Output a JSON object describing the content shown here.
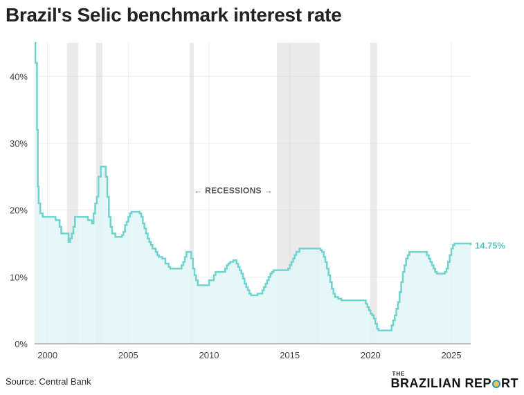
{
  "title": "Brazil's Selic benchmark interest rate",
  "source": "Source: Central Bank",
  "brand": {
    "top": "THE",
    "main_left": "BRAZILIAN REP",
    "main_right": "RT"
  },
  "colors": {
    "line": "#6fd3d0",
    "fill": "#e3f5f4",
    "recession": "#d9d9d9",
    "last_label": "#56c7c4"
  },
  "chart_data": {
    "type": "area",
    "title": "Brazil's Selic benchmark interest rate",
    "xlabel": "",
    "ylabel": "",
    "xlim": [
      1999.2,
      2026.2
    ],
    "ylim": [
      0,
      45
    ],
    "yticks": [
      0,
      10,
      20,
      30,
      40
    ],
    "ytick_labels": [
      "0%",
      "10%",
      "20%",
      "30%",
      "40%"
    ],
    "xticks": [
      2000,
      2005,
      2010,
      2015,
      2020,
      2025
    ],
    "xtick_labels": [
      "2000",
      "2005",
      "2010",
      "2015",
      "2020",
      "2025"
    ],
    "grid": true,
    "annotation": "← RECESSIONS →",
    "last_value_label": "14.75%",
    "recessions": [
      [
        2001.2,
        2001.9
      ],
      [
        2003.0,
        2003.4
      ],
      [
        2008.8,
        2009.05
      ],
      [
        2014.2,
        2016.85
      ],
      [
        2020.0,
        2020.4
      ]
    ],
    "series": [
      {
        "name": "Selic",
        "step": true,
        "x": [
          1999.2,
          1999.25,
          1999.35,
          1999.4,
          1999.45,
          1999.55,
          1999.7,
          2000.0,
          2000.5,
          2000.75,
          2000.85,
          2001.0,
          2001.3,
          2001.4,
          2001.5,
          2001.6,
          2001.7,
          2002.2,
          2002.5,
          2002.75,
          2002.85,
          2002.95,
          2003.05,
          2003.15,
          2003.3,
          2003.5,
          2003.6,
          2003.7,
          2003.8,
          2003.9,
          2004.0,
          2004.2,
          2004.5,
          2004.6,
          2004.7,
          2004.8,
          2004.9,
          2005.0,
          2005.1,
          2005.2,
          2005.3,
          2005.7,
          2005.8,
          2005.9,
          2006.0,
          2006.1,
          2006.2,
          2006.3,
          2006.4,
          2006.5,
          2006.7,
          2006.8,
          2006.9,
          2007.0,
          2007.1,
          2007.3,
          2007.5,
          2007.6,
          2007.8,
          2008.0,
          2008.2,
          2008.3,
          2008.4,
          2008.5,
          2008.6,
          2008.7,
          2008.9,
          2009.0,
          2009.1,
          2009.2,
          2009.3,
          2009.4,
          2009.5,
          2010.0,
          2010.3,
          2010.4,
          2010.5,
          2010.6,
          2011.0,
          2011.1,
          2011.2,
          2011.3,
          2011.5,
          2011.7,
          2011.8,
          2011.9,
          2012.0,
          2012.1,
          2012.2,
          2012.3,
          2012.4,
          2012.5,
          2012.6,
          2012.7,
          2012.8,
          2013.0,
          2013.3,
          2013.4,
          2013.5,
          2013.6,
          2013.7,
          2013.8,
          2013.9,
          2014.0,
          2014.1,
          2014.2,
          2014.3,
          2014.9,
          2015.0,
          2015.1,
          2015.2,
          2015.3,
          2015.4,
          2015.6,
          2016.8,
          2016.9,
          2017.0,
          2017.1,
          2017.2,
          2017.3,
          2017.4,
          2017.5,
          2017.6,
          2017.7,
          2017.8,
          2017.9,
          2018.0,
          2018.2,
          2018.4,
          2019.6,
          2019.7,
          2019.8,
          2019.9,
          2020.0,
          2020.1,
          2020.2,
          2020.3,
          2020.4,
          2020.5,
          2020.6,
          2021.2,
          2021.3,
          2021.4,
          2021.5,
          2021.6,
          2021.7,
          2021.8,
          2021.9,
          2022.0,
          2022.1,
          2022.2,
          2022.3,
          2022.4,
          2022.5,
          2022.6,
          2023.5,
          2023.6,
          2023.7,
          2023.8,
          2023.9,
          2024.0,
          2024.1,
          2024.2,
          2024.3,
          2024.6,
          2024.7,
          2024.8,
          2024.9,
          2025.0,
          2025.1,
          2025.2,
          2025.3,
          2025.4,
          2025.5,
          2026.2
        ],
        "values": [
          45,
          42,
          32,
          23.5,
          21,
          19.5,
          19,
          19,
          18.5,
          17.5,
          16.5,
          16.5,
          15.25,
          15.75,
          16.5,
          17.5,
          19,
          19,
          18.5,
          18,
          19.5,
          21,
          22,
          25,
          26.5,
          26.5,
          25,
          22,
          19,
          17.5,
          16.5,
          16,
          16,
          16.25,
          16.75,
          17.75,
          18.25,
          19,
          19.5,
          19.75,
          19.75,
          19.5,
          19,
          18,
          17.25,
          16.5,
          15.75,
          15.25,
          14.75,
          14.25,
          13.75,
          13.25,
          13,
          13,
          12.75,
          12,
          11.5,
          11.25,
          11.25,
          11.25,
          11.25,
          11.75,
          12.25,
          13,
          13.75,
          13.75,
          12.75,
          11.25,
          10.25,
          9.5,
          8.75,
          8.75,
          8.75,
          9.5,
          10.25,
          10.75,
          10.75,
          10.75,
          11.25,
          11.75,
          12,
          12.25,
          12.5,
          12,
          11.5,
          11,
          10.5,
          9.75,
          9,
          8.5,
          8,
          7.5,
          7.25,
          7.25,
          7.25,
          7.5,
          8,
          8.5,
          9,
          9.5,
          10,
          10.5,
          10.75,
          11,
          11,
          11,
          11,
          11.25,
          11.75,
          12.25,
          12.75,
          13.25,
          13.75,
          14.25,
          14.25,
          14,
          13.75,
          13,
          12.25,
          11.25,
          10.25,
          9.25,
          8.25,
          7.5,
          7,
          7,
          6.75,
          6.5,
          6.5,
          6.5,
          6,
          5.5,
          5,
          4.5,
          4.25,
          3.75,
          3,
          2.25,
          2,
          2,
          2,
          2.75,
          3.5,
          4.25,
          5.25,
          6.25,
          7.75,
          9.25,
          10.75,
          11.75,
          12.75,
          13.25,
          13.75,
          13.75,
          13.75,
          13.25,
          12.75,
          12.25,
          11.75,
          11.25,
          10.75,
          10.5,
          10.5,
          10.5,
          10.75,
          11.25,
          12.25,
          13.25,
          14.25,
          14.75,
          15,
          15,
          15,
          15,
          14.75
        ]
      }
    ]
  }
}
